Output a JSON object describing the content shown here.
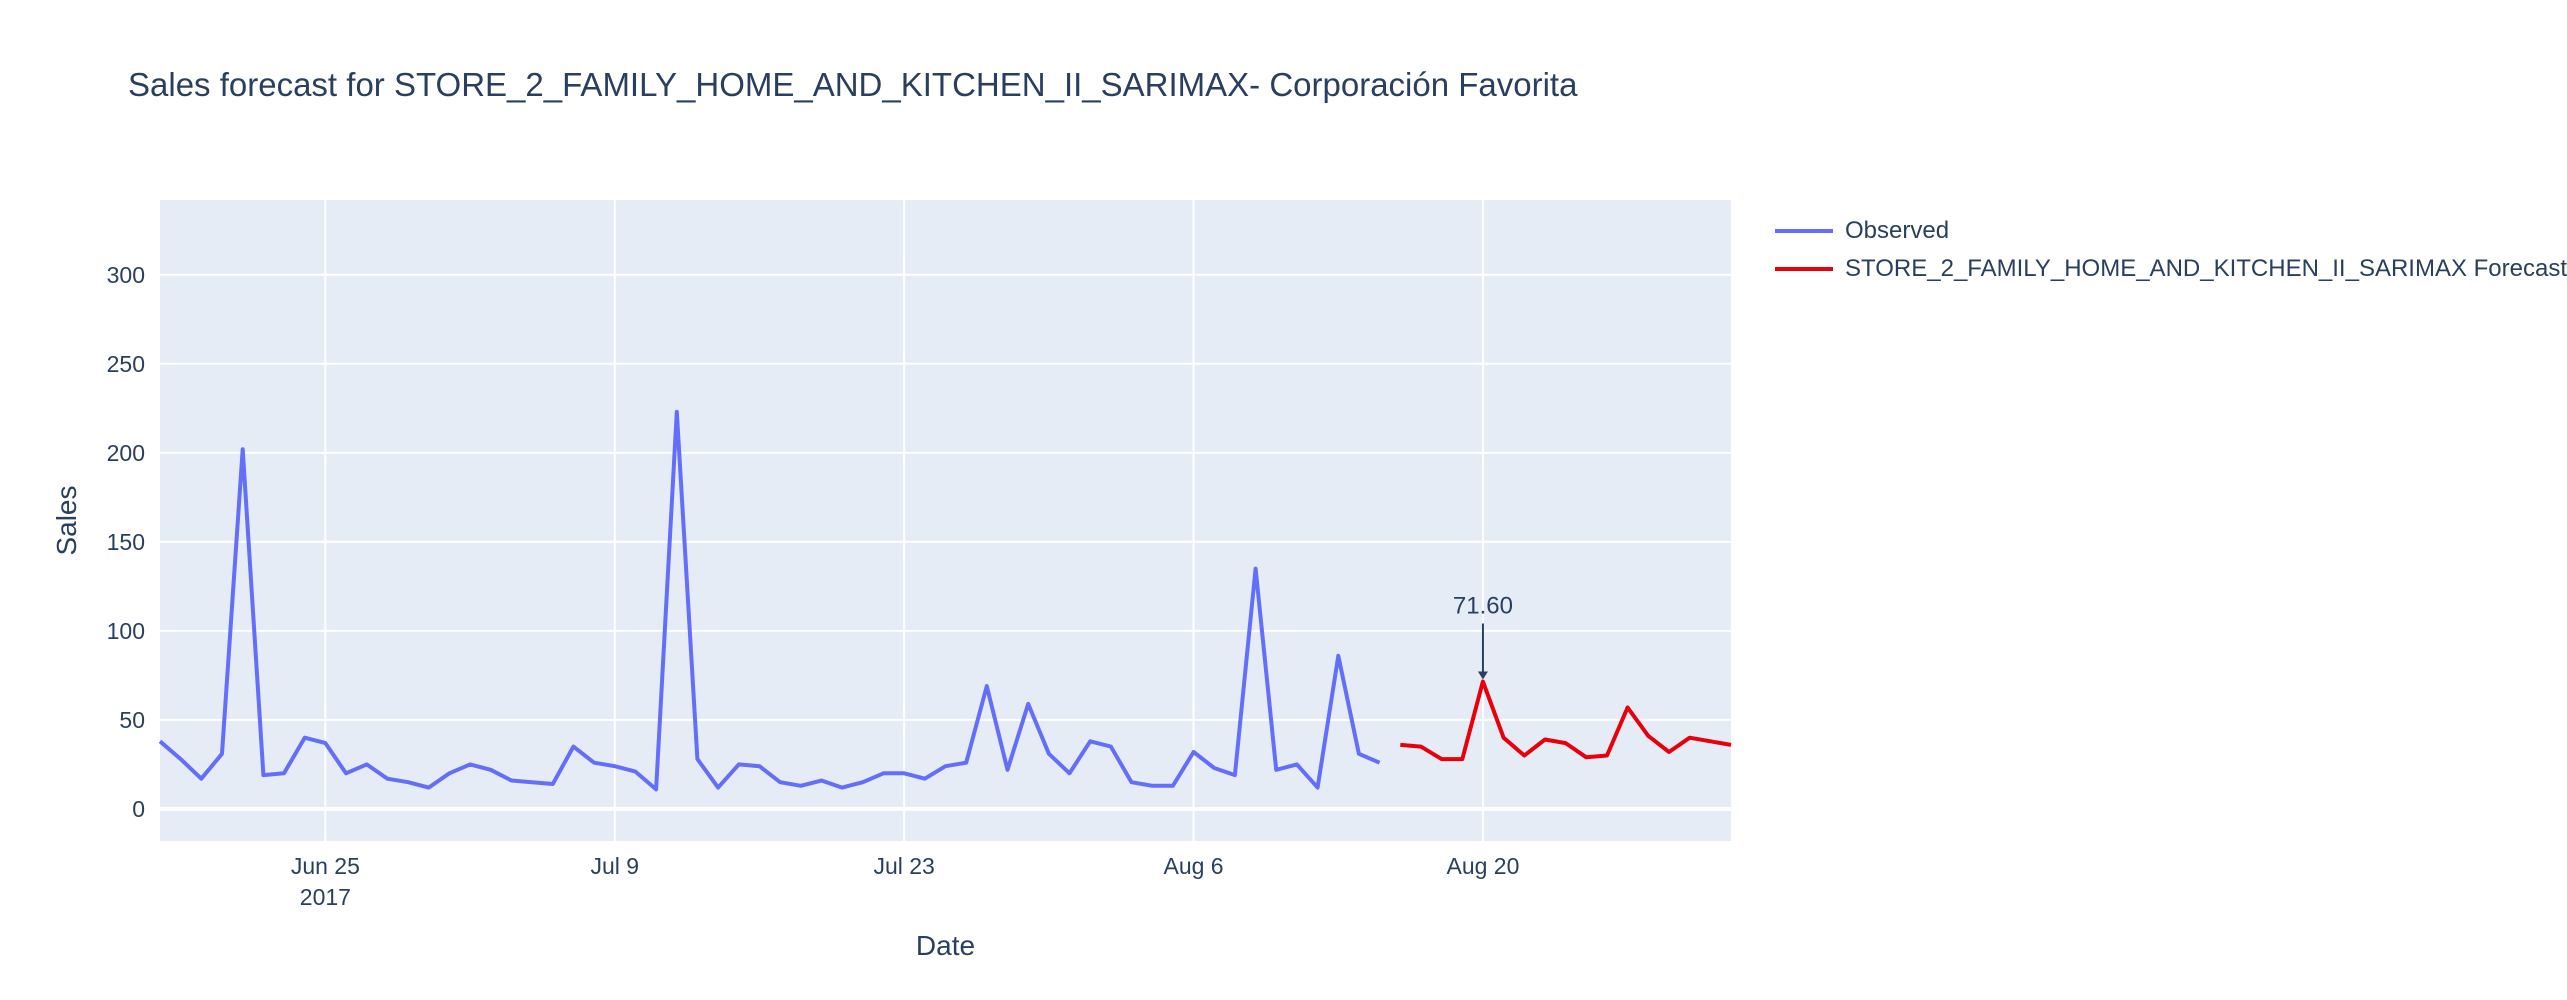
{
  "colors": {
    "observed": "#636efa",
    "forecast": "#e8000b",
    "plot_bg": "#e5ecf6",
    "grid": "#ffffff",
    "text": "#2a3f5f"
  },
  "chart_data": {
    "type": "line",
    "title": "Sales forecast for STORE_2_FAMILY_HOME_AND_KITCHEN_II_SARIMAX- Corporación Favorita",
    "xlabel": "Date",
    "ylabel": "Sales",
    "xlim": [
      "2017-06-17",
      "2017-09-01"
    ],
    "ylim": [
      -18,
      342
    ],
    "grid": true,
    "legend_position": "right",
    "x_ticks": [
      {
        "date": "2017-06-25",
        "label": "Jun 25",
        "sublabel": "2017"
      },
      {
        "date": "2017-07-09",
        "label": "Jul 9",
        "sublabel": ""
      },
      {
        "date": "2017-07-23",
        "label": "Jul 23",
        "sublabel": ""
      },
      {
        "date": "2017-08-06",
        "label": "Aug 6",
        "sublabel": ""
      },
      {
        "date": "2017-08-20",
        "label": "Aug 20",
        "sublabel": ""
      }
    ],
    "y_ticks": [
      0,
      50,
      100,
      150,
      200,
      250,
      300
    ],
    "series": [
      {
        "name": "Observed",
        "x": [
          "2017-06-17",
          "2017-06-18",
          "2017-06-19",
          "2017-06-20",
          "2017-06-21",
          "2017-06-22",
          "2017-06-23",
          "2017-06-24",
          "2017-06-25",
          "2017-06-26",
          "2017-06-27",
          "2017-06-28",
          "2017-06-29",
          "2017-06-30",
          "2017-07-01",
          "2017-07-02",
          "2017-07-03",
          "2017-07-04",
          "2017-07-05",
          "2017-07-06",
          "2017-07-07",
          "2017-07-08",
          "2017-07-09",
          "2017-07-10",
          "2017-07-11",
          "2017-07-12",
          "2017-07-13",
          "2017-07-14",
          "2017-07-15",
          "2017-07-16",
          "2017-07-17",
          "2017-07-18",
          "2017-07-19",
          "2017-07-20",
          "2017-07-21",
          "2017-07-22",
          "2017-07-23",
          "2017-07-24",
          "2017-07-25",
          "2017-07-26",
          "2017-07-27",
          "2017-07-28",
          "2017-07-29",
          "2017-07-30",
          "2017-07-31",
          "2017-08-01",
          "2017-08-02",
          "2017-08-03",
          "2017-08-04",
          "2017-08-05",
          "2017-08-06",
          "2017-08-07",
          "2017-08-08",
          "2017-08-09",
          "2017-08-10",
          "2017-08-11",
          "2017-08-12",
          "2017-08-13",
          "2017-08-14",
          "2017-08-15"
        ],
        "y": [
          38,
          28,
          17,
          31,
          202,
          19,
          20,
          40,
          37,
          20,
          25,
          17,
          15,
          12,
          20,
          25,
          22,
          16,
          15,
          14,
          35,
          26,
          24,
          21,
          11,
          223,
          28,
          12,
          25,
          24,
          15,
          13,
          16,
          12,
          15,
          20,
          20,
          17,
          24,
          26,
          69,
          22,
          59,
          31,
          20,
          38,
          35,
          15,
          13,
          13,
          32,
          23,
          19,
          135,
          22,
          25,
          12,
          86,
          31,
          26
        ]
      },
      {
        "name": "STORE_2_FAMILY_HOME_AND_KITCHEN_II_SARIMAX Forecast",
        "x": [
          "2017-08-16",
          "2017-08-17",
          "2017-08-18",
          "2017-08-19",
          "2017-08-20",
          "2017-08-21",
          "2017-08-22",
          "2017-08-23",
          "2017-08-24",
          "2017-08-25",
          "2017-08-26",
          "2017-08-27",
          "2017-08-28",
          "2017-08-29",
          "2017-08-30",
          "2017-08-31",
          "2017-09-01"
        ],
        "y": [
          36,
          35,
          28,
          28,
          71.6,
          40,
          30,
          39,
          37,
          29,
          30,
          57,
          41,
          32,
          40,
          38,
          36
        ]
      }
    ],
    "annotations": [
      {
        "date": "2017-08-20",
        "value": 71.6,
        "text": "71.60"
      }
    ]
  }
}
